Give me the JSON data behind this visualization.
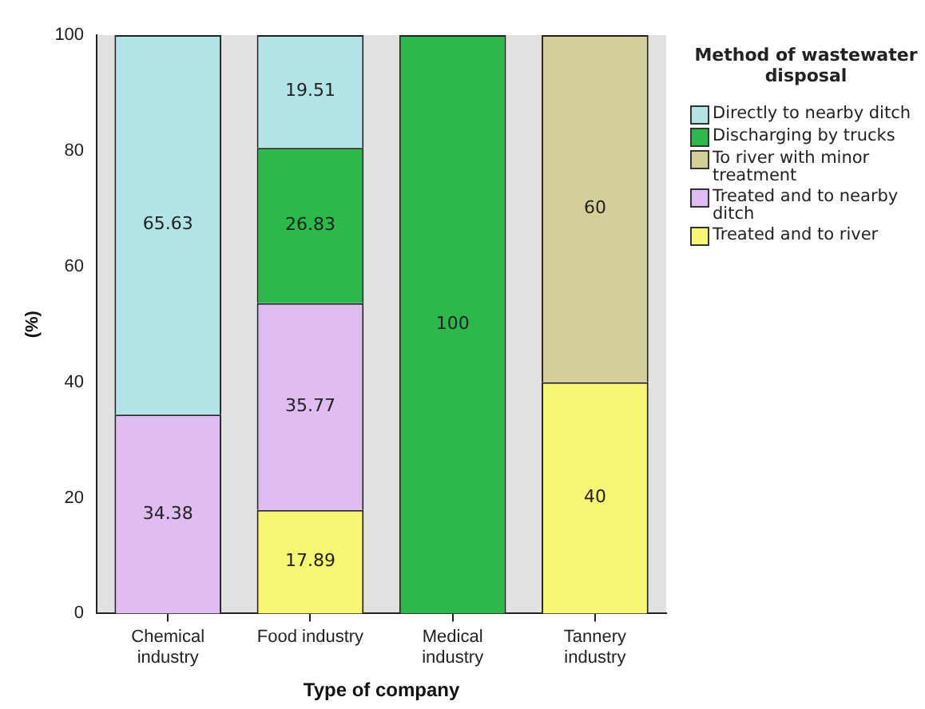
{
  "chart_data": {
    "type": "bar",
    "stacked": true,
    "xlabel": "Type of company",
    "ylabel": "(%)",
    "legend_title": "Method of wastewater disposal",
    "legend": "right",
    "data_labels": true,
    "grid": false,
    "categories": [
      "Chemical industry",
      "Food industry",
      "Medical industry",
      "Tannery industry"
    ],
    "ylim": [
      0,
      100
    ],
    "yticks": [
      0,
      20,
      40,
      60,
      80,
      100
    ],
    "series": [
      {
        "name": "Treated and to river",
        "color": "#f9f674",
        "values": [
          null,
          17.89,
          null,
          40
        ]
      },
      {
        "name": "Treated and to nearby ditch",
        "color": "#dfbdf3",
        "values": [
          34.38,
          35.77,
          null,
          null
        ]
      },
      {
        "name": "To river with minor treatment",
        "color": "#d4cf98",
        "values": [
          null,
          null,
          null,
          60
        ]
      },
      {
        "name": "Discharging by trucks",
        "color": "#2db84b",
        "values": [
          null,
          26.83,
          100,
          null
        ]
      },
      {
        "name": "Directly to nearby ditch",
        "color": "#b3e5e8",
        "values": [
          65.63,
          19.51,
          null,
          null
        ]
      }
    ]
  }
}
